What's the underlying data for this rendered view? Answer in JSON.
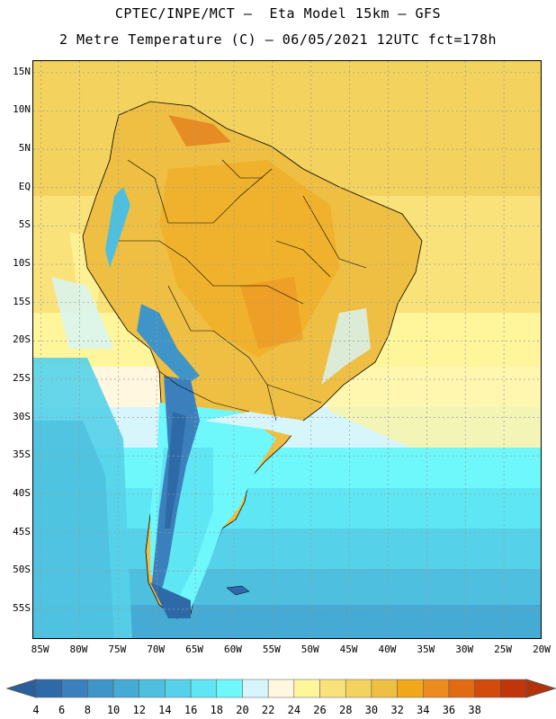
{
  "header": {
    "line1": "CPTEC/INPE/MCT –  Eta Model 15km – GFS",
    "line2": "2 Metre Temperature (C) – 06/05/2021 12UTC fct=178h"
  },
  "map": {
    "lon_range": [
      -86,
      -20
    ],
    "lat_range": [
      -59,
      16.5
    ],
    "lat_ticks": [
      {
        "value": 15,
        "label": "15N"
      },
      {
        "value": 10,
        "label": "10N"
      },
      {
        "value": 5,
        "label": "5N"
      },
      {
        "value": 0,
        "label": "EQ"
      },
      {
        "value": -5,
        "label": "5S"
      },
      {
        "value": -10,
        "label": "10S"
      },
      {
        "value": -15,
        "label": "15S"
      },
      {
        "value": -20,
        "label": "20S"
      },
      {
        "value": -25,
        "label": "25S"
      },
      {
        "value": -30,
        "label": "30S"
      },
      {
        "value": -35,
        "label": "35S"
      },
      {
        "value": -40,
        "label": "40S"
      },
      {
        "value": -45,
        "label": "45S"
      },
      {
        "value": -50,
        "label": "50S"
      },
      {
        "value": -55,
        "label": "55S"
      }
    ],
    "lon_ticks": [
      {
        "value": -85,
        "label": "85W"
      },
      {
        "value": -80,
        "label": "80W"
      },
      {
        "value": -75,
        "label": "75W"
      },
      {
        "value": -70,
        "label": "70W"
      },
      {
        "value": -65,
        "label": "65W"
      },
      {
        "value": -60,
        "label": "60W"
      },
      {
        "value": -55,
        "label": "55W"
      },
      {
        "value": -50,
        "label": "50W"
      },
      {
        "value": -45,
        "label": "45W"
      },
      {
        "value": -40,
        "label": "40W"
      },
      {
        "value": -35,
        "label": "35W"
      },
      {
        "value": -30,
        "label": "30W"
      },
      {
        "value": -25,
        "label": "25W"
      },
      {
        "value": -20,
        "label": "20W"
      }
    ]
  },
  "colorbar": {
    "levels": [
      4,
      6,
      8,
      10,
      12,
      14,
      16,
      18,
      20,
      22,
      24,
      26,
      28,
      30,
      32,
      34,
      36,
      38
    ],
    "colors": [
      "#2f6aa8",
      "#3b80bd",
      "#3f95c8",
      "#45aad4",
      "#4ebfdf",
      "#55d2ea",
      "#5fe6f4",
      "#6ef8fb",
      "#d6f6fb",
      "#fff7e0",
      "#fff59a",
      "#f9e27a",
      "#f3d25e",
      "#efbf43",
      "#f0a81a",
      "#ec8c1e",
      "#e06b13",
      "#d24a0c",
      "#c0360a"
    ],
    "under_color": "#2a5f9e",
    "over_color": "#b53209"
  }
}
